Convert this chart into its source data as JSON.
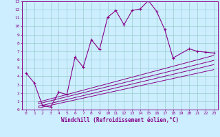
{
  "xlabel": "Windchill (Refroidissement éolien,°C)",
  "bg_color": "#cceeff",
  "line_color": "#880088",
  "grid_color": "#99cccc",
  "xlim": [
    -0.5,
    23.5
  ],
  "ylim": [
    0,
    13
  ],
  "xticks": [
    0,
    1,
    2,
    3,
    4,
    5,
    6,
    7,
    8,
    9,
    10,
    11,
    12,
    13,
    14,
    15,
    16,
    17,
    18,
    19,
    20,
    21,
    22,
    23
  ],
  "yticks": [
    0,
    1,
    2,
    3,
    4,
    5,
    6,
    7,
    8,
    9,
    10,
    11,
    12,
    13
  ],
  "main_curve": {
    "x": [
      0,
      1,
      2,
      3,
      4,
      5,
      6,
      7,
      8,
      9,
      10,
      11,
      12,
      13,
      14,
      15,
      16,
      17,
      18,
      20,
      21,
      22,
      23
    ],
    "y": [
      4.4,
      3.2,
      0.5,
      0.3,
      2.1,
      1.8,
      6.3,
      5.1,
      8.4,
      7.2,
      11.1,
      11.9,
      10.2,
      11.9,
      12.1,
      13.1,
      11.8,
      9.6,
      6.2,
      7.3,
      7.0,
      6.9,
      6.8
    ]
  },
  "linear_lines": [
    {
      "x": [
        1.5,
        23
      ],
      "y": [
        0.9,
        6.5
      ]
    },
    {
      "x": [
        1.5,
        23
      ],
      "y": [
        0.7,
        5.9
      ]
    },
    {
      "x": [
        1.5,
        23
      ],
      "y": [
        0.4,
        5.4
      ]
    },
    {
      "x": [
        1.5,
        23
      ],
      "y": [
        0.2,
        4.8
      ]
    }
  ]
}
